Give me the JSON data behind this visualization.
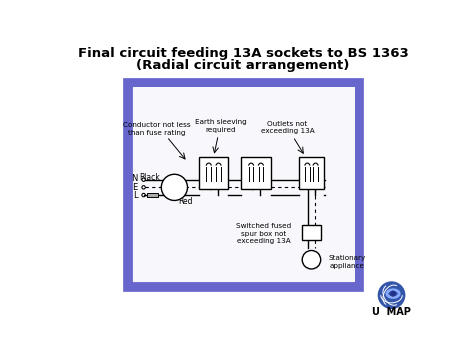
{
  "title_line1": "Final circuit feeding 13A sockets to BS 1363",
  "title_line2": "(Radial circuit arrangement)",
  "slide_bg": "#ffffff",
  "border_color": "#6666cc",
  "border_fill": "#c8c8e8",
  "inner_fill": "#f0f0f8",
  "label_conductor": "Conductor not less\nthan fuse rating",
  "label_earth": "Earth sleeving\nrequired",
  "label_outlets": "Outlets not\nexceeding 13A",
  "label_black": "Black",
  "label_red": "Red",
  "label_spur": "Switched fused\nspur box not\nexceeding 13A",
  "label_appliance": "Stationary\nappliance"
}
